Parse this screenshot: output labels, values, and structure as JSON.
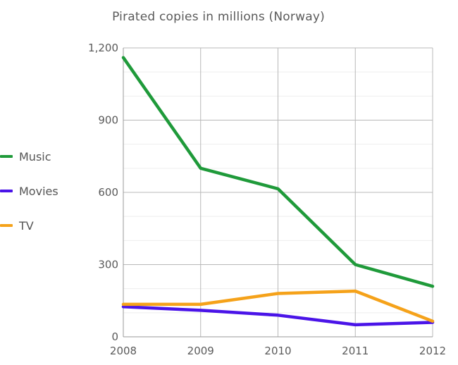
{
  "chart_data": {
    "type": "line",
    "title": "Pirated copies in millions (Norway)",
    "xlabel": "",
    "ylabel": "",
    "categories": [
      "2008",
      "2009",
      "2010",
      "2011",
      "2012"
    ],
    "ylim": [
      0,
      1200
    ],
    "yticks": [
      "0",
      "300",
      "600",
      "900",
      "1,200"
    ],
    "yticks_values": [
      0,
      300,
      600,
      900,
      1200
    ],
    "grid": true,
    "legend_position": "left",
    "series": [
      {
        "name": "Music",
        "color": "#1f9a3a",
        "values": [
          1160,
          700,
          615,
          300,
          210
        ]
      },
      {
        "name": "Movies",
        "color": "#4a14e8",
        "values": [
          125,
          110,
          90,
          50,
          60
        ]
      },
      {
        "name": "TV",
        "color": "#f5a21a",
        "values": [
          135,
          135,
          180,
          190,
          65
        ]
      }
    ]
  }
}
